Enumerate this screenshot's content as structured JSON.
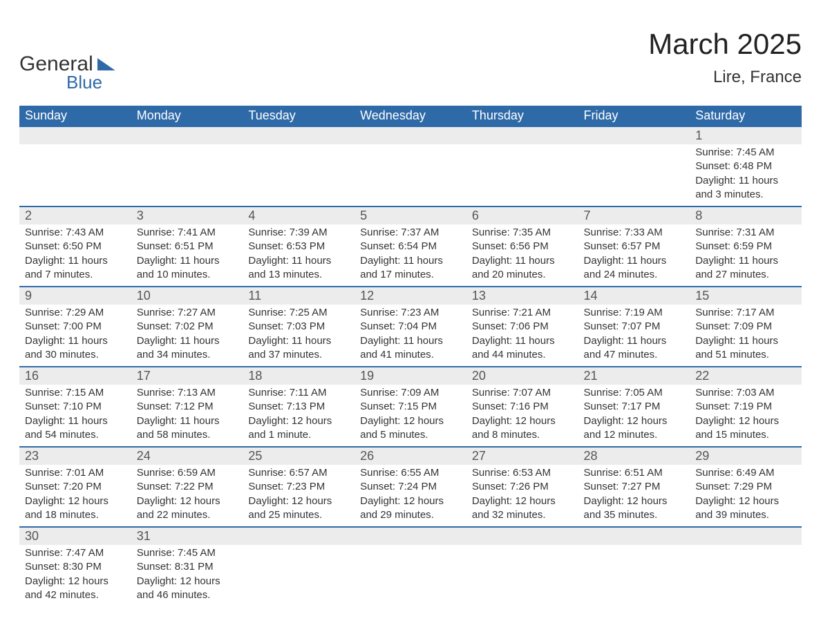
{
  "brand": {
    "word1": "General",
    "word2": "Blue",
    "brand_color": "#2f6aa8"
  },
  "title": "March 2025",
  "location": "Lire, France",
  "header_bg": "#2f6aa8",
  "header_fg": "#ffffff",
  "daynum_bg": "#ececec",
  "row_border_color": "#2f6aa8",
  "text_color": "#333333",
  "day_headers": [
    "Sunday",
    "Monday",
    "Tuesday",
    "Wednesday",
    "Thursday",
    "Friday",
    "Saturday"
  ],
  "weeks": [
    [
      {
        "num": "",
        "lines": []
      },
      {
        "num": "",
        "lines": []
      },
      {
        "num": "",
        "lines": []
      },
      {
        "num": "",
        "lines": []
      },
      {
        "num": "",
        "lines": []
      },
      {
        "num": "",
        "lines": []
      },
      {
        "num": "1",
        "lines": [
          "Sunrise: 7:45 AM",
          "Sunset: 6:48 PM",
          "Daylight: 11 hours",
          "and 3 minutes."
        ]
      }
    ],
    [
      {
        "num": "2",
        "lines": [
          "Sunrise: 7:43 AM",
          "Sunset: 6:50 PM",
          "Daylight: 11 hours",
          "and 7 minutes."
        ]
      },
      {
        "num": "3",
        "lines": [
          "Sunrise: 7:41 AM",
          "Sunset: 6:51 PM",
          "Daylight: 11 hours",
          "and 10 minutes."
        ]
      },
      {
        "num": "4",
        "lines": [
          "Sunrise: 7:39 AM",
          "Sunset: 6:53 PM",
          "Daylight: 11 hours",
          "and 13 minutes."
        ]
      },
      {
        "num": "5",
        "lines": [
          "Sunrise: 7:37 AM",
          "Sunset: 6:54 PM",
          "Daylight: 11 hours",
          "and 17 minutes."
        ]
      },
      {
        "num": "6",
        "lines": [
          "Sunrise: 7:35 AM",
          "Sunset: 6:56 PM",
          "Daylight: 11 hours",
          "and 20 minutes."
        ]
      },
      {
        "num": "7",
        "lines": [
          "Sunrise: 7:33 AM",
          "Sunset: 6:57 PM",
          "Daylight: 11 hours",
          "and 24 minutes."
        ]
      },
      {
        "num": "8",
        "lines": [
          "Sunrise: 7:31 AM",
          "Sunset: 6:59 PM",
          "Daylight: 11 hours",
          "and 27 minutes."
        ]
      }
    ],
    [
      {
        "num": "9",
        "lines": [
          "Sunrise: 7:29 AM",
          "Sunset: 7:00 PM",
          "Daylight: 11 hours",
          "and 30 minutes."
        ]
      },
      {
        "num": "10",
        "lines": [
          "Sunrise: 7:27 AM",
          "Sunset: 7:02 PM",
          "Daylight: 11 hours",
          "and 34 minutes."
        ]
      },
      {
        "num": "11",
        "lines": [
          "Sunrise: 7:25 AM",
          "Sunset: 7:03 PM",
          "Daylight: 11 hours",
          "and 37 minutes."
        ]
      },
      {
        "num": "12",
        "lines": [
          "Sunrise: 7:23 AM",
          "Sunset: 7:04 PM",
          "Daylight: 11 hours",
          "and 41 minutes."
        ]
      },
      {
        "num": "13",
        "lines": [
          "Sunrise: 7:21 AM",
          "Sunset: 7:06 PM",
          "Daylight: 11 hours",
          "and 44 minutes."
        ]
      },
      {
        "num": "14",
        "lines": [
          "Sunrise: 7:19 AM",
          "Sunset: 7:07 PM",
          "Daylight: 11 hours",
          "and 47 minutes."
        ]
      },
      {
        "num": "15",
        "lines": [
          "Sunrise: 7:17 AM",
          "Sunset: 7:09 PM",
          "Daylight: 11 hours",
          "and 51 minutes."
        ]
      }
    ],
    [
      {
        "num": "16",
        "lines": [
          "Sunrise: 7:15 AM",
          "Sunset: 7:10 PM",
          "Daylight: 11 hours",
          "and 54 minutes."
        ]
      },
      {
        "num": "17",
        "lines": [
          "Sunrise: 7:13 AM",
          "Sunset: 7:12 PM",
          "Daylight: 11 hours",
          "and 58 minutes."
        ]
      },
      {
        "num": "18",
        "lines": [
          "Sunrise: 7:11 AM",
          "Sunset: 7:13 PM",
          "Daylight: 12 hours",
          "and 1 minute."
        ]
      },
      {
        "num": "19",
        "lines": [
          "Sunrise: 7:09 AM",
          "Sunset: 7:15 PM",
          "Daylight: 12 hours",
          "and 5 minutes."
        ]
      },
      {
        "num": "20",
        "lines": [
          "Sunrise: 7:07 AM",
          "Sunset: 7:16 PM",
          "Daylight: 12 hours",
          "and 8 minutes."
        ]
      },
      {
        "num": "21",
        "lines": [
          "Sunrise: 7:05 AM",
          "Sunset: 7:17 PM",
          "Daylight: 12 hours",
          "and 12 minutes."
        ]
      },
      {
        "num": "22",
        "lines": [
          "Sunrise: 7:03 AM",
          "Sunset: 7:19 PM",
          "Daylight: 12 hours",
          "and 15 minutes."
        ]
      }
    ],
    [
      {
        "num": "23",
        "lines": [
          "Sunrise: 7:01 AM",
          "Sunset: 7:20 PM",
          "Daylight: 12 hours",
          "and 18 minutes."
        ]
      },
      {
        "num": "24",
        "lines": [
          "Sunrise: 6:59 AM",
          "Sunset: 7:22 PM",
          "Daylight: 12 hours",
          "and 22 minutes."
        ]
      },
      {
        "num": "25",
        "lines": [
          "Sunrise: 6:57 AM",
          "Sunset: 7:23 PM",
          "Daylight: 12 hours",
          "and 25 minutes."
        ]
      },
      {
        "num": "26",
        "lines": [
          "Sunrise: 6:55 AM",
          "Sunset: 7:24 PM",
          "Daylight: 12 hours",
          "and 29 minutes."
        ]
      },
      {
        "num": "27",
        "lines": [
          "Sunrise: 6:53 AM",
          "Sunset: 7:26 PM",
          "Daylight: 12 hours",
          "and 32 minutes."
        ]
      },
      {
        "num": "28",
        "lines": [
          "Sunrise: 6:51 AM",
          "Sunset: 7:27 PM",
          "Daylight: 12 hours",
          "and 35 minutes."
        ]
      },
      {
        "num": "29",
        "lines": [
          "Sunrise: 6:49 AM",
          "Sunset: 7:29 PM",
          "Daylight: 12 hours",
          "and 39 minutes."
        ]
      }
    ],
    [
      {
        "num": "30",
        "lines": [
          "Sunrise: 7:47 AM",
          "Sunset: 8:30 PM",
          "Daylight: 12 hours",
          "and 42 minutes."
        ]
      },
      {
        "num": "31",
        "lines": [
          "Sunrise: 7:45 AM",
          "Sunset: 8:31 PM",
          "Daylight: 12 hours",
          "and 46 minutes."
        ]
      },
      {
        "num": "",
        "lines": []
      },
      {
        "num": "",
        "lines": []
      },
      {
        "num": "",
        "lines": []
      },
      {
        "num": "",
        "lines": []
      },
      {
        "num": "",
        "lines": []
      }
    ]
  ]
}
